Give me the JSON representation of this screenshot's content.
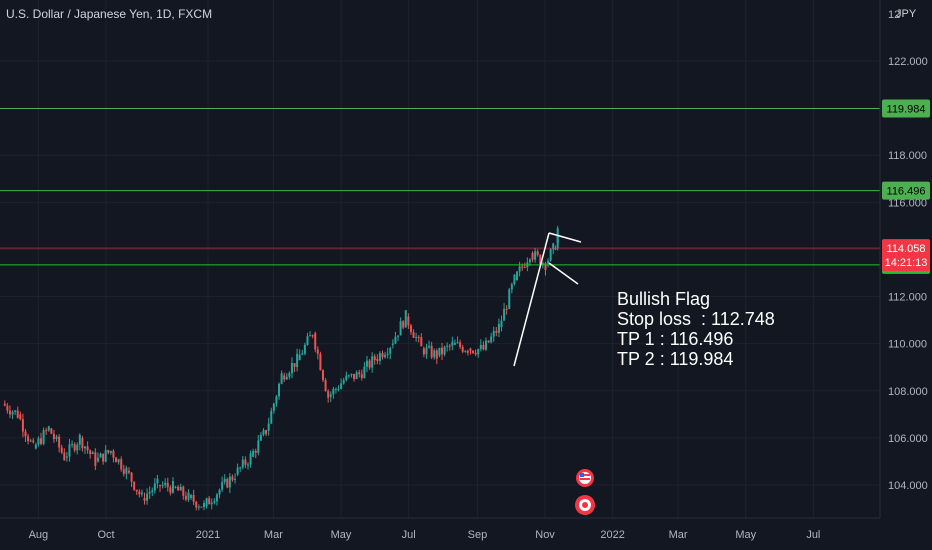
{
  "header": {
    "title": "U.S. Dollar / Japanese Yen, 1D, FXCM"
  },
  "price_axis": {
    "currency": "JPY",
    "top_label": "12",
    "ticks": [
      122.0,
      120.0,
      118.0,
      116.0,
      114.0,
      112.0,
      110.0,
      108.0,
      106.0,
      104.0
    ],
    "levels": [
      {
        "label": "119.984",
        "value": 119.984,
        "color": "#4caf50"
      },
      {
        "label": "116.496",
        "value": 116.496,
        "color": "#4caf50"
      },
      {
        "label": "113.345",
        "value": 113.345,
        "color": "#22c22e"
      }
    ],
    "last_price": {
      "label": "114.058",
      "value": 114.058,
      "countdown": "14:21:13",
      "color": "#f23645"
    }
  },
  "time_axis": {
    "labels": [
      "Aug",
      "Oct",
      "2021",
      "Mar",
      "May",
      "Jul",
      "Sep",
      "Nov",
      "2022",
      "Mar",
      "May",
      "Jul"
    ]
  },
  "annotation": {
    "line1": "Bullish Flag",
    "line2": "Stop loss  : 112.748",
    "line3": "TP 1 : 116.496",
    "line4": "TP 2 : 119.984"
  },
  "chart_data": {
    "type": "candlestick",
    "title": "U.S. Dollar / Japanese Yen, 1D, FXCM",
    "y_range": [
      102.8,
      124.0
    ],
    "x_range": [
      "2020-07-01",
      "2022-08-01"
    ],
    "series": [
      {
        "name": "USDJPY",
        "values": [
          [
            "2020-07-03",
            107.6,
            107.3
          ],
          [
            "2020-07-17",
            107.2,
            106.8
          ],
          [
            "2020-07-31",
            106.5,
            104.6
          ],
          [
            "2020-08-14",
            106.6,
            106.2
          ],
          [
            "2020-08-28",
            105.4,
            105.0
          ],
          [
            "2020-09-11",
            106.2,
            105.8
          ],
          [
            "2020-09-25",
            105.4,
            104.6
          ],
          [
            "2020-10-09",
            105.6,
            105.3
          ],
          [
            "2020-10-23",
            104.8,
            104.4
          ],
          [
            "2020-11-06",
            103.7,
            103.2
          ],
          [
            "2020-11-20",
            104.1,
            103.9
          ],
          [
            "2020-12-04",
            104.0,
            103.8
          ],
          [
            "2020-12-18",
            103.6,
            103.3
          ],
          [
            "2021-01-01",
            103.2,
            103.0
          ],
          [
            "2021-01-15",
            103.9,
            103.7
          ],
          [
            "2021-01-29",
            104.6,
            104.3
          ],
          [
            "2021-02-12",
            105.4,
            105.0
          ],
          [
            "2021-02-26",
            106.5,
            106.1
          ],
          [
            "2021-03-12",
            108.9,
            108.4
          ],
          [
            "2021-03-26",
            109.4,
            109.2
          ],
          [
            "2021-04-09",
            110.6,
            110.3
          ],
          [
            "2021-04-23",
            107.9,
            107.6
          ],
          [
            "2021-05-07",
            108.6,
            108.3
          ],
          [
            "2021-05-21",
            108.8,
            108.6
          ],
          [
            "2021-06-04",
            109.5,
            109.2
          ],
          [
            "2021-06-18",
            110.1,
            109.8
          ],
          [
            "2021-07-02",
            110.9,
            111.4
          ],
          [
            "2021-07-16",
            110.0,
            109.6
          ],
          [
            "2021-07-30",
            109.6,
            109.4
          ],
          [
            "2021-08-13",
            110.2,
            109.7
          ],
          [
            "2021-08-27",
            109.9,
            109.7
          ],
          [
            "2021-09-10",
            109.9,
            109.6
          ],
          [
            "2021-09-24",
            110.6,
            110.8
          ],
          [
            "2021-10-08",
            112.4,
            113.0
          ],
          [
            "2021-10-22",
            114.1,
            113.6
          ],
          [
            "2021-11-05",
            113.5,
            113.3
          ],
          [
            "2021-11-12",
            114.1,
            113.9
          ],
          [
            "2021-11-16",
            114.3,
            114.9
          ]
        ]
      }
    ],
    "levels": [
      119.984,
      116.496,
      113.345
    ],
    "last_price": 114.058,
    "pattern": "Bullish Flag"
  }
}
